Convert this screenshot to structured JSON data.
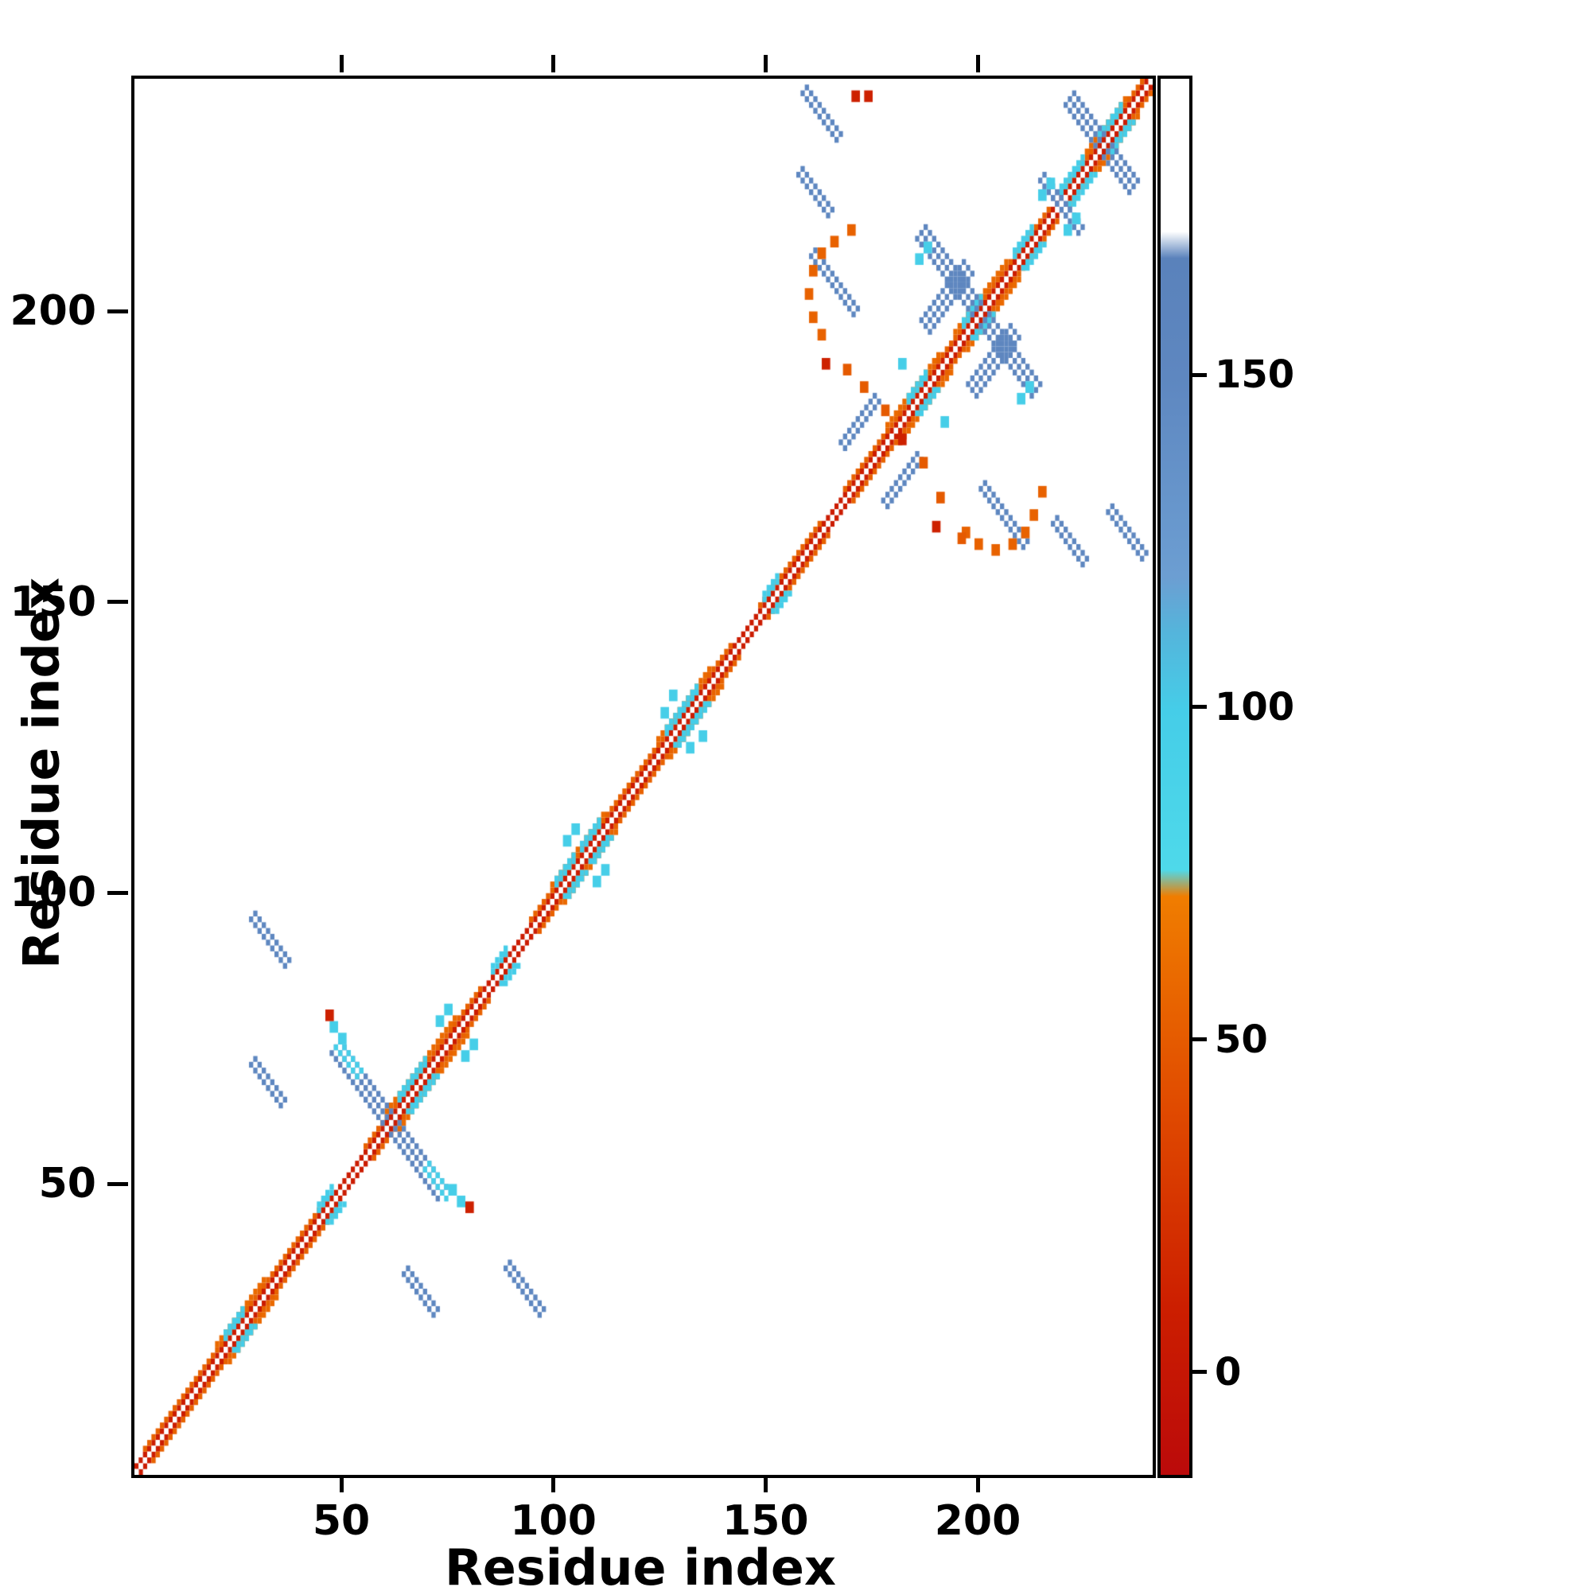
{
  "figure": {
    "x_ticks": [
      50,
      100,
      150,
      200
    ],
    "y_ticks": [
      50,
      100,
      150,
      200
    ],
    "colorbar_ticks": [
      0,
      50,
      100,
      150
    ]
  },
  "chart_data": {
    "type": "heatmap",
    "title": "",
    "xlabel": "Residue index",
    "ylabel": "Residue index",
    "x_range": [
      1,
      240
    ],
    "y_range": [
      1,
      240
    ],
    "value_range": [
      -15,
      195
    ],
    "grid": false,
    "legend_position": "colorbar-right",
    "colormap_stops": [
      {
        "value": -15,
        "color": "#bb0a0a"
      },
      {
        "value": 10,
        "color": "#cc1e00"
      },
      {
        "value": 40,
        "color": "#e04a00"
      },
      {
        "value": 72,
        "color": "#f07d00"
      },
      {
        "value": 76,
        "color": "#4ed9ea"
      },
      {
        "value": 100,
        "color": "#45cde8"
      },
      {
        "value": 112,
        "color": "#55b4db"
      },
      {
        "value": 120,
        "color": "#6c9ed2"
      },
      {
        "value": 150,
        "color": "#5e87c0"
      },
      {
        "value": 168,
        "color": "#5a82bb"
      },
      {
        "value": 172,
        "color": "#ffffff"
      },
      {
        "value": 195,
        "color": "#ffffff"
      }
    ],
    "features": [
      {
        "t": "diag",
        "segs": [
          [
            1,
            240
          ]
        ],
        "off": 1,
        "th": 1,
        "v": 8
      },
      {
        "t": "diag",
        "segs": [
          [
            3,
            46
          ],
          [
            55,
            82
          ],
          [
            94,
            141
          ],
          [
            148,
            162
          ],
          [
            168,
            216
          ],
          [
            219,
            239
          ]
        ],
        "off": 2,
        "th": 1,
        "v": 55
      },
      {
        "t": "diag",
        "segs": [
          [
            20,
            31
          ],
          [
            60,
            76
          ],
          [
            99,
            111
          ],
          [
            124,
            136
          ],
          [
            178,
            190
          ],
          [
            194,
            206
          ],
          [
            225,
            234
          ]
        ],
        "off": 3,
        "th": 1,
        "v": 60
      },
      {
        "t": "diag",
        "segs": [
          [
            22,
            26
          ],
          [
            44,
            47
          ],
          [
            63,
            69
          ],
          [
            85,
            88
          ],
          [
            100,
            104
          ],
          [
            106,
            110
          ],
          [
            126,
            133
          ],
          [
            149,
            152
          ],
          [
            183,
            187
          ],
          [
            196,
            200
          ],
          [
            208,
            212
          ],
          [
            219,
            224
          ],
          [
            228,
            233
          ]
        ],
        "off": 2,
        "th": 2,
        "v": 100
      },
      {
        "t": "anti",
        "cx": 61,
        "cy": 61,
        "len": 26,
        "th": 3,
        "v": 152
      },
      {
        "t": "anti",
        "cx": 200,
        "cy": 200,
        "len": 28,
        "th": 3,
        "v": 152
      },
      {
        "t": "anti",
        "cx": 229,
        "cy": 229,
        "len": 16,
        "th": 3,
        "v": 152
      },
      {
        "t": "anti",
        "cx": 93,
        "cy": 33,
        "len": 9,
        "th": 2,
        "v": 150,
        "m": true
      },
      {
        "t": "anti",
        "cx": 69,
        "cy": 32,
        "len": 8,
        "th": 2,
        "v": 150,
        "m": true
      },
      {
        "t": "anti",
        "cx": 166,
        "cy": 206,
        "len": 11,
        "th": 2,
        "v": 150,
        "m": true
      },
      {
        "t": "anti",
        "cx": 222,
        "cy": 161,
        "len": 8,
        "th": 2,
        "v": 150,
        "m": true
      },
      {
        "t": "anti",
        "cx": 163,
        "cy": 235,
        "len": 9,
        "th": 2,
        "v": 150,
        "m": true
      },
      {
        "t": "anti",
        "cx": 218,
        "cy": 221,
        "len": 7,
        "th": 2,
        "v": 150,
        "m": true
      },
      {
        "t": "dpar",
        "cx": 192,
        "cy": 203,
        "len": 11,
        "th": 3,
        "v": 150,
        "m": true
      },
      {
        "t": "dpar",
        "cx": 172,
        "cy": 181,
        "len": 9,
        "th": 2,
        "v": 150,
        "m": true
      },
      {
        "t": "anti",
        "cx": 52,
        "cy": 72,
        "len": 6,
        "th": 2,
        "v": 98,
        "m": true
      },
      {
        "t": "dots",
        "pts": [
          [
            75,
            49
          ],
          [
            77,
            47
          ]
        ],
        "v": 98,
        "m": true,
        "s": 2
      },
      {
        "t": "dots",
        "pts": [
          [
            79,
            46
          ]
        ],
        "v": 12,
        "m": true,
        "s": 2
      },
      {
        "t": "dots",
        "pts": [
          [
            102,
            109
          ],
          [
            104,
            111
          ]
        ],
        "v": 98,
        "m": true,
        "s": 2
      },
      {
        "t": "dots",
        "pts": [
          [
            72,
            78
          ],
          [
            74,
            80
          ]
        ],
        "v": 98,
        "m": true,
        "s": 2
      },
      {
        "t": "dots",
        "pts": [
          [
            125,
            131
          ],
          [
            127,
            134
          ]
        ],
        "v": 98,
        "m": true,
        "s": 2
      },
      {
        "t": "dots",
        "pts": [
          [
            185,
            209
          ],
          [
            187,
            211
          ]
        ],
        "v": 98,
        "m": true,
        "s": 2
      },
      {
        "t": "dots",
        "pts": [
          [
            214,
            220
          ],
          [
            216,
            222
          ]
        ],
        "v": 98,
        "m": true,
        "s": 2
      },
      {
        "t": "dots",
        "pts": [
          [
            181,
            191
          ]
        ],
        "v": 98,
        "m": true,
        "s": 2
      },
      {
        "t": "path",
        "pts": [
          [
            162,
            196
          ],
          [
            160,
            199
          ],
          [
            159,
            203
          ],
          [
            160,
            207
          ],
          [
            162,
            210
          ],
          [
            165,
            212
          ],
          [
            169,
            214
          ]
        ],
        "v": 55,
        "m": true,
        "s": 2
      },
      {
        "t": "dots",
        "pts": [
          [
            168,
            190
          ],
          [
            172,
            187
          ],
          [
            177,
            183
          ],
          [
            186,
            174
          ],
          [
            190,
            168
          ],
          [
            195,
            161
          ]
        ],
        "v": 50,
        "m": false,
        "s": 2
      },
      {
        "t": "dots",
        "pts": [
          [
            163,
            191
          ],
          [
            181,
            178
          ],
          [
            189,
            163
          ]
        ],
        "v": 12,
        "m": false,
        "s": 2
      },
      {
        "t": "dots",
        "pts": [
          [
            170,
            237
          ],
          [
            173,
            237
          ]
        ],
        "v": 12,
        "m": false,
        "s": 2
      }
    ]
  }
}
